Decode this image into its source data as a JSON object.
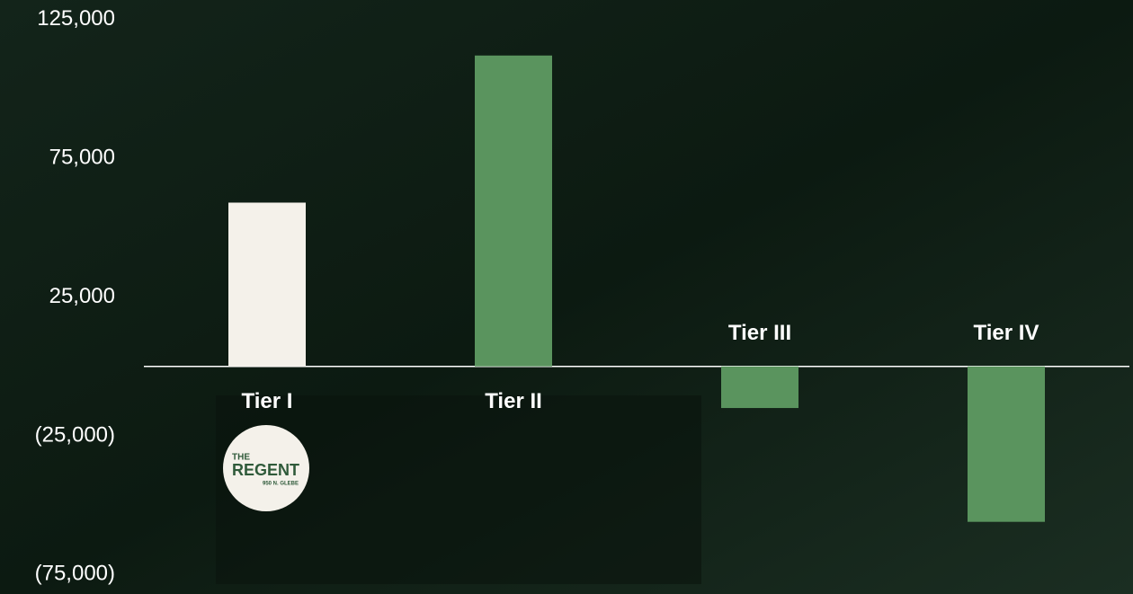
{
  "chart_data": {
    "type": "bar",
    "categories": [
      "Tier I",
      "Tier II",
      "Tier III",
      "Tier IV"
    ],
    "values": [
      59000,
      112000,
      -15000,
      -56000
    ],
    "colors": [
      "#f4f1ea",
      "#5a945e",
      "#5a945e",
      "#5a945e"
    ],
    "ylim": [
      -82000,
      132000
    ],
    "yticks": [
      {
        "value": 125000,
        "label": "125,000"
      },
      {
        "value": 75000,
        "label": "75,000"
      },
      {
        "value": 25000,
        "label": "25,000"
      },
      {
        "value": -25000,
        "label": "(25,000)"
      },
      {
        "value": -75000,
        "label": "(75,000)"
      }
    ],
    "grid": false
  },
  "logo": {
    "line1": "THE",
    "line2": "REGENT",
    "line3": "950 N. GLEBE"
  }
}
